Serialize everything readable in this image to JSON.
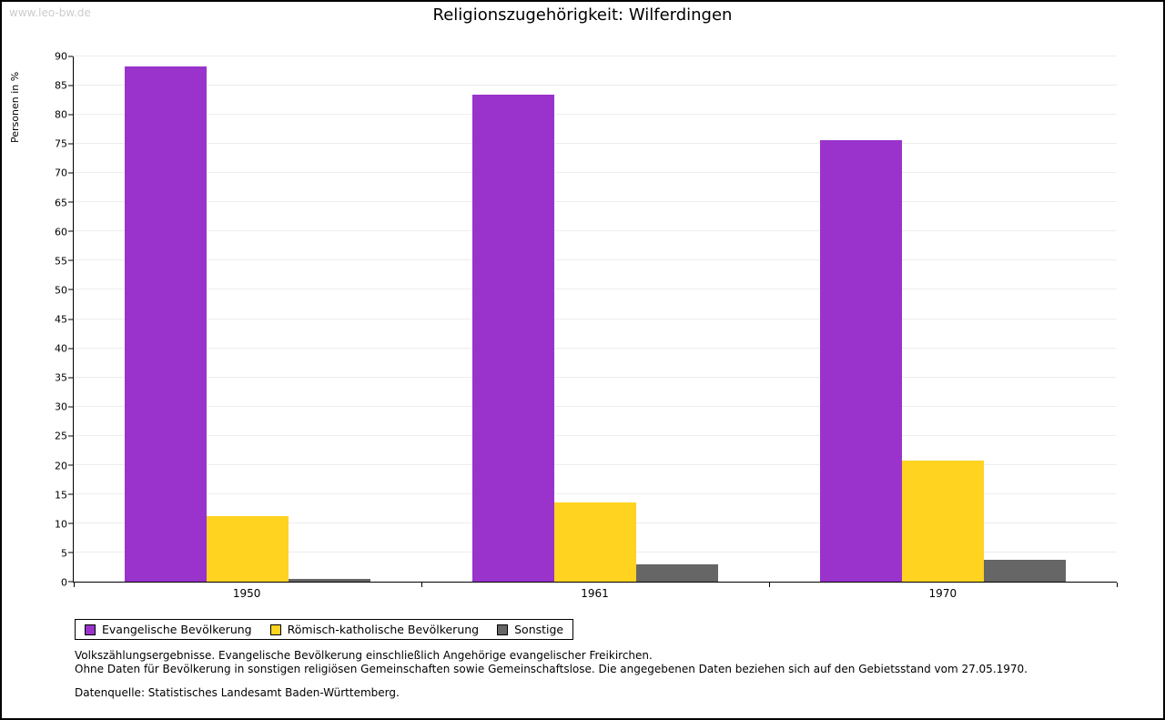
{
  "watermark": "www.leo-bw.de",
  "title": "Religionszugehörigkeit: Wilferdingen",
  "chart_data": {
    "type": "bar",
    "title": "Religionszugehörigkeit: Wilferdingen",
    "xlabel": "",
    "ylabel": "Personen in %",
    "ylim": [
      0,
      90
    ],
    "ytick_step": 5,
    "grid": true,
    "legend_position": "bottom-left",
    "categories": [
      "1950",
      "1961",
      "1970"
    ],
    "series": [
      {
        "name": "Evangelische Bevölkerung",
        "color": "#9933cc",
        "values": [
          88.3,
          83.4,
          75.6
        ]
      },
      {
        "name": "Römisch-katholische Bevölkerung",
        "color": "#ffd320",
        "values": [
          11.3,
          13.6,
          20.7
        ]
      },
      {
        "name": "Sonstige",
        "color": "#666666",
        "values": [
          0.4,
          3.0,
          3.7
        ]
      }
    ]
  },
  "footnotes": [
    "Volkszählungsergebnisse. Evangelische Bevölkerung einschließlich Angehörige evangelischer Freikirchen.",
    "Ohne Daten für Bevölkerung in sonstigen religiösen Gemeinschaften sowie Gemeinschaftslose. Die angegebenen Daten beziehen sich auf den Gebietsstand vom 27.05.1970.",
    "Datenquelle: Statistisches Landesamt Baden-Württemberg."
  ]
}
